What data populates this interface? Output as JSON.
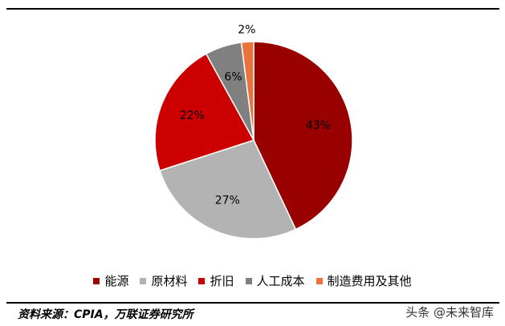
{
  "chart_data": {
    "type": "pie",
    "categories": [
      "能源",
      "原材料",
      "折旧",
      "人工成本",
      "制造费用及其他"
    ],
    "values": [
      43,
      27,
      22,
      6,
      2
    ],
    "value_labels": [
      "43%",
      "27%",
      "22%",
      "6%",
      "2%"
    ],
    "colors": [
      "#990000",
      "#b3b3b3",
      "#cc0000",
      "#808080",
      "#e8743b"
    ],
    "legend": "bottom",
    "source": "资料来源：CPIA，万联证券研究所"
  },
  "watermark": "头条 @未来智库"
}
